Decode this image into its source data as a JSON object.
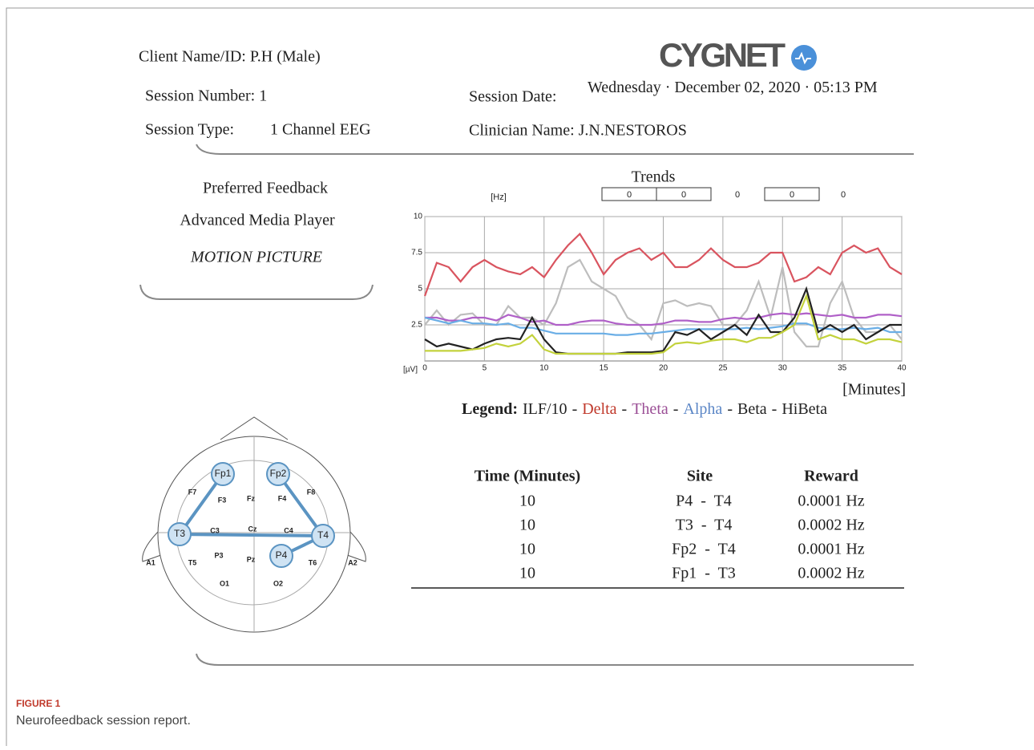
{
  "header": {
    "client": "Client Name/ID: P.H (Male)",
    "session_number": "Session Number: 1",
    "session_type_label": "Session Type:",
    "session_type": "1 Channel EEG",
    "session_date_label": "Session Date:",
    "session_date": "Wednesday · December 02, 2020 · 05:13 PM",
    "clinician": "Clinician Name: J.N.NESTOROS",
    "logo": "CYGNET"
  },
  "feedback": {
    "title": "Preferred Feedback",
    "player": "Advanced Media Player",
    "mode": "MOTION PICTURE"
  },
  "trends": {
    "title": "Trends",
    "unit": "[Hz]",
    "values": [
      0,
      0,
      0,
      0,
      0
    ]
  },
  "chart_data": {
    "type": "line",
    "x_label": "[Minutes]",
    "y_label": "[µV]",
    "legend_title": "Legend:",
    "legend_separator": "-",
    "grid": true,
    "xlim": [
      0,
      40
    ],
    "xticks": [
      0,
      5,
      10,
      15,
      20,
      25,
      30,
      35,
      40
    ],
    "ylim": [
      0,
      10
    ],
    "yticks": [
      2.5,
      5,
      7.5,
      10
    ],
    "x": [
      0,
      1,
      2,
      3,
      4,
      5,
      6,
      7,
      8,
      9,
      10,
      11,
      12,
      13,
      14,
      15,
      16,
      17,
      18,
      19,
      20,
      21,
      22,
      23,
      24,
      25,
      26,
      27,
      28,
      29,
      30,
      31,
      32,
      33,
      34,
      35,
      36,
      37,
      38,
      39,
      40
    ],
    "series": [
      {
        "name": "ILF/10",
        "color": "#bdbdbd",
        "legend_color": "#222222",
        "values": [
          2.5,
          3.5,
          2.5,
          3.2,
          3.3,
          2.5,
          2.5,
          3.8,
          3,
          3,
          2.5,
          4,
          6.5,
          7,
          5.5,
          5,
          4.5,
          3,
          2.5,
          1.5,
          4,
          4.2,
          3.8,
          4,
          3.8,
          2.5,
          2.5,
          3.5,
          5.5,
          3,
          6.5,
          2,
          1,
          1,
          4,
          5.5,
          3,
          2,
          2,
          2.5,
          1.5
        ]
      },
      {
        "name": "Delta",
        "color": "#d9545f",
        "legend_color": "#c0392b",
        "values": [
          4.5,
          6.8,
          6.5,
          5.5,
          6.5,
          7,
          6.5,
          6.2,
          6,
          6.5,
          5.8,
          7,
          8,
          8.8,
          7.5,
          6,
          7,
          7.5,
          7.8,
          7,
          7.5,
          6.5,
          6.5,
          7,
          7.8,
          7,
          6.5,
          6.5,
          6.8,
          7.5,
          7.5,
          5.5,
          5.8,
          6.5,
          6,
          7.5,
          8,
          7.5,
          7.8,
          6.5,
          6
        ]
      },
      {
        "name": "Theta",
        "color": "#b060c8",
        "legend_color": "#9b4f96",
        "values": [
          3,
          3,
          2.8,
          2.8,
          3,
          3,
          2.8,
          3.2,
          3,
          2.7,
          2.8,
          2.5,
          2.5,
          2.7,
          2.8,
          2.8,
          2.6,
          2.5,
          2.5,
          2.5,
          2.6,
          2.8,
          2.8,
          2.7,
          2.7,
          2.9,
          3,
          2.9,
          3,
          3.2,
          3.3,
          3.2,
          3.3,
          3.2,
          3.1,
          3.2,
          3,
          3,
          3.2,
          3.2,
          3.1
        ]
      },
      {
        "name": "Alpha",
        "color": "#6aaee6",
        "legend_color": "#5b86c6",
        "values": [
          3,
          2.8,
          2.6,
          2.8,
          2.6,
          2.6,
          2.5,
          2.6,
          2.3,
          2.3,
          2.1,
          1.9,
          1.9,
          1.9,
          1.9,
          1.9,
          1.8,
          1.8,
          1.9,
          1.9,
          2,
          2.1,
          2.2,
          2.2,
          2.2,
          2.2,
          2.2,
          2.3,
          2.2,
          2.3,
          2.4,
          2.6,
          2.6,
          2.3,
          2.2,
          2.2,
          2.3,
          2.2,
          2.3,
          2,
          2
        ]
      },
      {
        "name": "Beta",
        "color": "#222222",
        "legend_color": "#222222",
        "values": [
          1.5,
          1,
          1.2,
          1,
          0.8,
          1.2,
          1.5,
          1.6,
          1.5,
          3,
          1.5,
          0.6,
          0.5,
          0.5,
          0.5,
          0.5,
          0.5,
          0.6,
          0.6,
          0.6,
          0.7,
          2,
          1.8,
          2.2,
          1.5,
          2,
          2.5,
          1.8,
          3.2,
          2,
          2,
          3,
          5,
          2,
          2.5,
          2,
          2.5,
          1.5,
          2,
          2.5,
          2.5
        ]
      },
      {
        "name": "HiBeta",
        "color": "#c3d23c",
        "legend_color": "#222222",
        "values": [
          0.7,
          0.7,
          0.7,
          0.7,
          0.8,
          0.9,
          1.2,
          1,
          1.2,
          1.8,
          0.8,
          0.5,
          0.5,
          0.5,
          0.5,
          0.5,
          0.5,
          0.5,
          0.5,
          0.5,
          0.6,
          1.2,
          1.3,
          1.2,
          1.4,
          1.5,
          1.5,
          1.3,
          1.6,
          1.6,
          2,
          2.5,
          4.5,
          1.5,
          1.8,
          1.5,
          1.5,
          1.2,
          1.5,
          1.5,
          1.3
        ]
      }
    ]
  },
  "table": {
    "headers": [
      "Time (Minutes)",
      "Site",
      "Reward"
    ],
    "rows": [
      [
        10,
        "P4  -  T4",
        "0.0001 Hz"
      ],
      [
        10,
        "T3  -  T4",
        "0.0002 Hz"
      ],
      [
        10,
        "Fp2  -  T4",
        "0.0001 Hz"
      ],
      [
        10,
        "Fp1  -  T3",
        "0.0002 Hz"
      ]
    ]
  },
  "head": {
    "electrodes": [
      "Fp1",
      "Fp2",
      "F7",
      "F3",
      "Fz",
      "F4",
      "F8",
      "T3",
      "C3",
      "Cz",
      "C4",
      "T4",
      "A1",
      "T5",
      "P3",
      "Pz",
      "P4",
      "T6",
      "A2",
      "O1",
      "O2"
    ]
  },
  "caption": {
    "label": "FIGURE 1",
    "text": "Neurofeedback session report."
  }
}
